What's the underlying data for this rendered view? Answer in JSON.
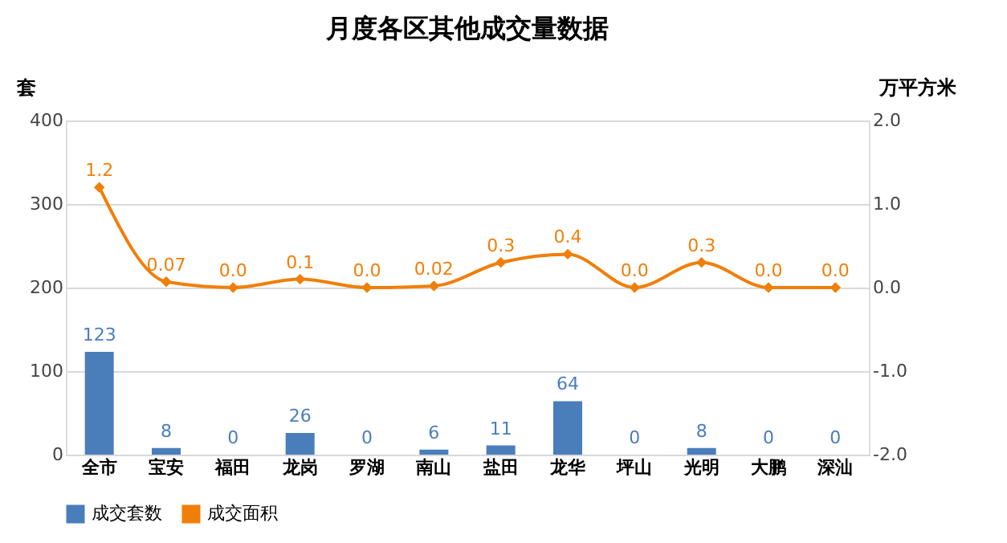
{
  "chart_data": {
    "type": "bar",
    "title": "月度各区其他成交量数据",
    "categories": [
      "全市",
      "宝安",
      "福田",
      "龙岗",
      "罗湖",
      "南山",
      "盐田",
      "龙华",
      "坪山",
      "光明",
      "大鹏",
      "深汕"
    ],
    "series": [
      {
        "name": "成交套数",
        "color": "#4a7ebb",
        "values": [
          123,
          8,
          0,
          26,
          0,
          6,
          11,
          64,
          0,
          8,
          0,
          0
        ],
        "value_labels": [
          "123",
          "8",
          "0",
          "26",
          "0",
          "6",
          "11",
          "64",
          "0",
          "8",
          "0",
          "0"
        ]
      },
      {
        "name": "成交面积",
        "type": "line",
        "axis": "y2",
        "color": "#f07f09",
        "values": [
          1.2,
          0.07,
          0.0,
          0.1,
          0.0,
          0.02,
          0.3,
          0.4,
          0.0,
          0.3,
          0.0,
          0.0
        ],
        "value_labels": [
          "1.2",
          "0.07",
          "0.0",
          "0.1",
          "0.0",
          "0.02",
          "0.3",
          "0.4",
          "0.0",
          "0.3",
          "0.0",
          "0.0"
        ]
      }
    ],
    "ylabel": "套",
    "y2label": "万平方米",
    "ylim": [
      0,
      400
    ],
    "yticks": [
      0,
      100,
      200,
      300,
      400
    ],
    "y2lim": [
      -2,
      2
    ],
    "y2ticks": [
      {
        "value": -2,
        "label": "-2.0"
      },
      {
        "value": -1,
        "label": "-1.0"
      },
      {
        "value": 0,
        "label": "0.0"
      },
      {
        "value": 1,
        "label": "1.0"
      },
      {
        "value": 2,
        "label": "2.0"
      }
    ],
    "grid": "y",
    "legend": "bottom",
    "marker": "diamond",
    "line_style": "solid"
  }
}
